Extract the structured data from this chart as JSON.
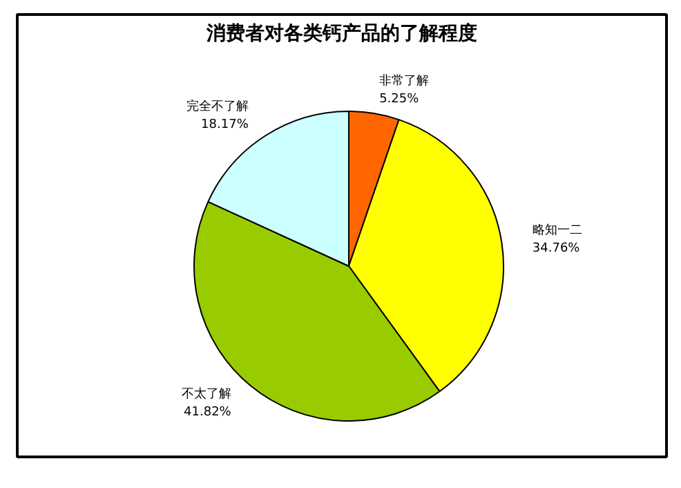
{
  "chart_data": {
    "type": "pie",
    "title": "消费者对各类钙产品的了解程度",
    "categories": [
      "非常了解",
      "略知一二",
      "不太了解",
      "完全不了解"
    ],
    "values": [
      5.25,
      34.76,
      41.82,
      18.17
    ],
    "value_labels": [
      "5.25%",
      "34.76%",
      "41.82%",
      "18.17%"
    ],
    "colors": [
      "#ff6600",
      "#ffff00",
      "#99cc00",
      "#ccffff"
    ]
  }
}
